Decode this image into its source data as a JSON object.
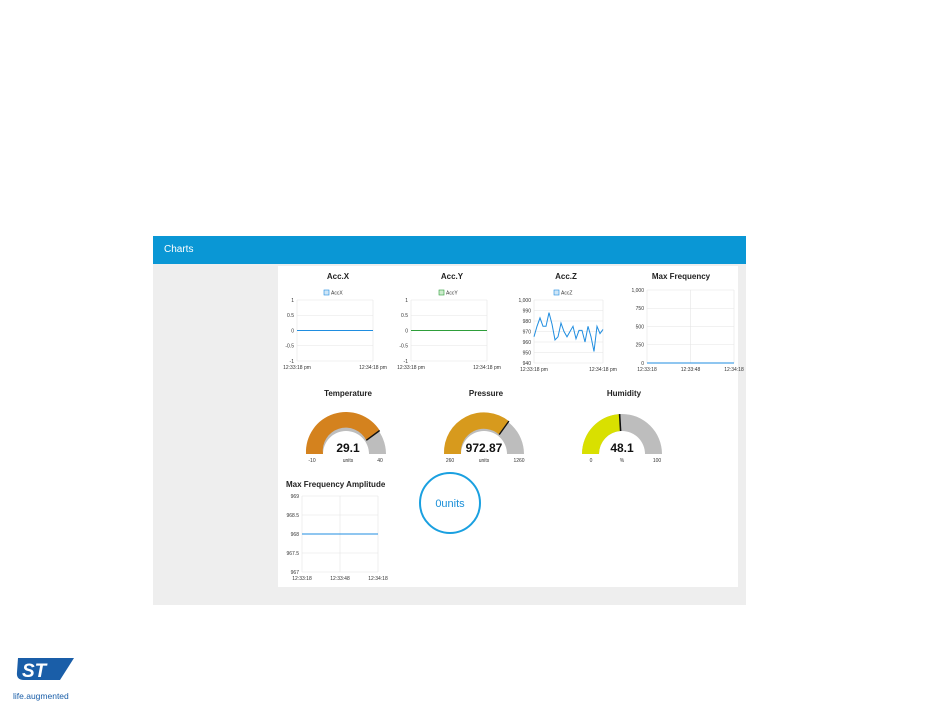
{
  "header": {
    "title": "Charts"
  },
  "colors": {
    "header": "#0a97d5",
    "panel_bg": "#eeeeee",
    "temperature": "#d4821e",
    "pressure": "#d79a1d",
    "humidity": "#d9e000",
    "gauge_track": "#bdbdbd",
    "donut": "#1aa0e0"
  },
  "charts": {
    "accx": {
      "title": "Acc.X",
      "legend": "AccX"
    },
    "accy": {
      "title": "Acc.Y",
      "legend": "AccY"
    },
    "accz": {
      "title": "Acc.Z",
      "legend": "AccZ"
    },
    "maxfreq": {
      "title": "Max Frequency"
    },
    "maxamp": {
      "title": "Max Frequency Amplitude"
    }
  },
  "gauges": {
    "temperature": {
      "title": "Temperature",
      "value": "29.1",
      "unit": "units",
      "min": "-10",
      "max": "40"
    },
    "pressure": {
      "title": "Pressure",
      "value": "972.87",
      "unit": "units",
      "min": "260",
      "max": "1260"
    },
    "humidity": {
      "title": "Humidity",
      "value": "48.1",
      "unit": "%",
      "min": "0",
      "max": "100"
    }
  },
  "donut": {
    "text": "0units"
  },
  "logo": {
    "tagline": "life.augmented"
  },
  "chart_data": [
    {
      "type": "line",
      "title": "Acc.X",
      "series": [
        {
          "name": "AccX",
          "values": [
            0,
            0,
            0,
            0,
            0,
            0,
            0,
            0,
            0,
            0,
            0,
            0,
            0,
            0,
            0,
            0,
            0,
            0,
            0,
            0,
            0,
            0,
            0,
            0
          ]
        }
      ],
      "x_ticks": [
        "12:33:18 pm",
        "12:34:18 pm"
      ],
      "y_ticks": [
        "1",
        "0.5",
        "0",
        "-0.5",
        "-1"
      ],
      "ylim": [
        -1,
        1
      ]
    },
    {
      "type": "line",
      "title": "Acc.Y",
      "series": [
        {
          "name": "AccY",
          "values": [
            0,
            0,
            0,
            0,
            0,
            0,
            0,
            0,
            0,
            0,
            0,
            0,
            0,
            0,
            0,
            0,
            0,
            0,
            0,
            0,
            0,
            0,
            0,
            0
          ]
        }
      ],
      "x_ticks": [
        "12:33:18 pm",
        "12:34:18 pm"
      ],
      "y_ticks": [
        "1",
        "0.5",
        "0",
        "-0.5",
        "-1"
      ],
      "ylim": [
        -1,
        1
      ]
    },
    {
      "type": "line",
      "title": "Acc.Z",
      "series": [
        {
          "name": "AccZ",
          "values": [
            965,
            975,
            983,
            975,
            975,
            988,
            977,
            962,
            965,
            978,
            970,
            965,
            970,
            975,
            963,
            971,
            971,
            960,
            975,
            965,
            951,
            975,
            968,
            972
          ]
        }
      ],
      "x_ticks": [
        "12:33:18 pm",
        "12:34:18 pm"
      ],
      "y_ticks": [
        "1,000",
        "990",
        "980",
        "970",
        "960",
        "950",
        "940"
      ],
      "ylim": [
        940,
        1000
      ]
    },
    {
      "type": "line",
      "title": "Max Frequency",
      "series": [
        {
          "values": [
            0,
            0,
            0,
            0,
            0,
            0,
            0,
            0,
            0,
            0,
            0,
            0,
            0,
            0,
            0,
            0,
            0,
            0,
            0,
            0,
            0,
            0,
            0,
            0
          ]
        }
      ],
      "x_ticks": [
        "12:33:18",
        "12:33:48",
        "12:34:18"
      ],
      "y_ticks": [
        "1,000",
        "750",
        "500",
        "250",
        "0"
      ],
      "ylim": [
        0,
        1000
      ]
    },
    {
      "type": "line",
      "title": "Max Frequency Amplitude",
      "series": [
        {
          "values": [
            968,
            968,
            968,
            968,
            968,
            968,
            968,
            968,
            968,
            968,
            968,
            968,
            968,
            968,
            968,
            968,
            968,
            968,
            968,
            968,
            968,
            968,
            968,
            968
          ]
        }
      ],
      "x_ticks": [
        "12:33:18",
        "12:33:48",
        "12:34:18"
      ],
      "y_ticks": [
        "969",
        "968.5",
        "968",
        "967.5",
        "967"
      ],
      "ylim": [
        967,
        969
      ]
    }
  ]
}
